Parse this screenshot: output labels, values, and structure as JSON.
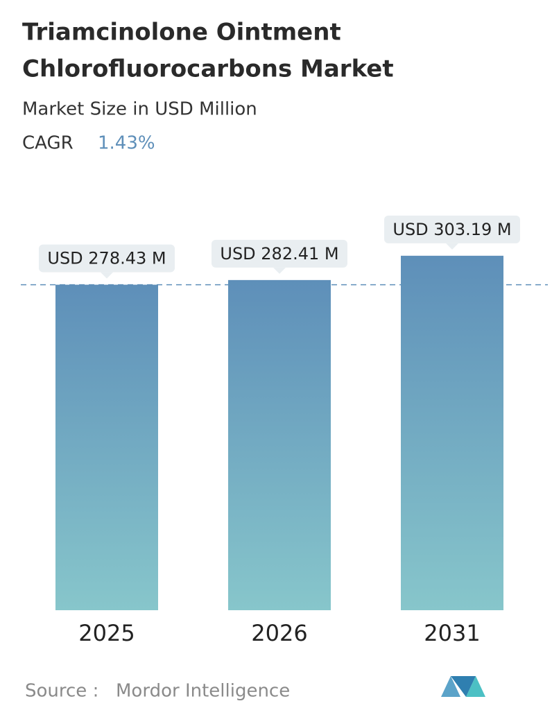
{
  "chart_data": {
    "type": "bar",
    "title_lines": [
      "Triamcinolone Ointment",
      "Chlorofluorocarbons Market"
    ],
    "subtitle": "Market Size in USD Million",
    "cagr_label": "CAGR",
    "cagr_value": "1.43%",
    "categories": [
      "2025",
      "2026",
      "2031"
    ],
    "values": [
      278.43,
      282.41,
      303.19
    ],
    "value_labels": [
      "USD 278.43 M",
      "USD 282.41 M",
      "USD 303.19 M"
    ],
    "ylim": [
      0,
      300
    ],
    "source_label": "Source :",
    "source": "Mordor Intelligence"
  }
}
